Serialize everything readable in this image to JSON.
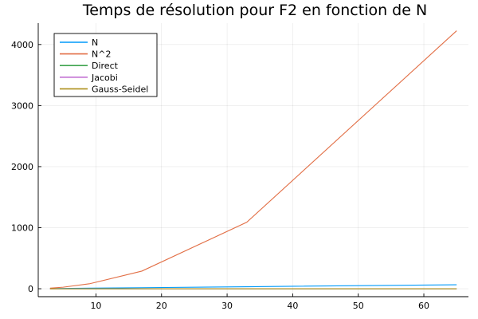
{
  "chart_data": {
    "type": "line",
    "title": "Temps de résolution pour F2 en fonction de N",
    "xlabel": "",
    "ylabel": "",
    "xlim": [
      1.2,
      66.8
    ],
    "ylim": [
      -130,
      4350
    ],
    "xticks": [
      10,
      20,
      30,
      40,
      50,
      60
    ],
    "yticks": [
      0,
      1000,
      2000,
      3000,
      4000
    ],
    "grid": true,
    "legend_position": "top-left",
    "series": [
      {
        "name": "N",
        "color": "#009AFA",
        "x": [
          3,
          5,
          9,
          17,
          33,
          65
        ],
        "y": [
          3,
          5,
          9,
          17,
          33,
          65
        ]
      },
      {
        "name": "N^2",
        "color": "#E26F46",
        "x": [
          3,
          5,
          9,
          17,
          33,
          65
        ],
        "y": [
          9,
          25,
          81,
          289,
          1089,
          4225
        ]
      },
      {
        "name": "Direct",
        "color": "#3EA44E",
        "x": [
          3,
          5,
          9,
          17,
          33,
          65
        ],
        "y": [
          0,
          0,
          0,
          0,
          0,
          0
        ]
      },
      {
        "name": "Jacobi",
        "color": "#C271D2",
        "x": [
          3,
          5,
          9,
          17,
          33,
          65
        ],
        "y": [
          0,
          0,
          0,
          0,
          0.1,
          0.3
        ]
      },
      {
        "name": "Gauss-Seidel",
        "color": "#AC8E18",
        "x": [
          3,
          5,
          9,
          17,
          33,
          65
        ],
        "y": [
          0,
          0,
          0,
          0,
          0.1,
          0.3
        ]
      }
    ]
  }
}
